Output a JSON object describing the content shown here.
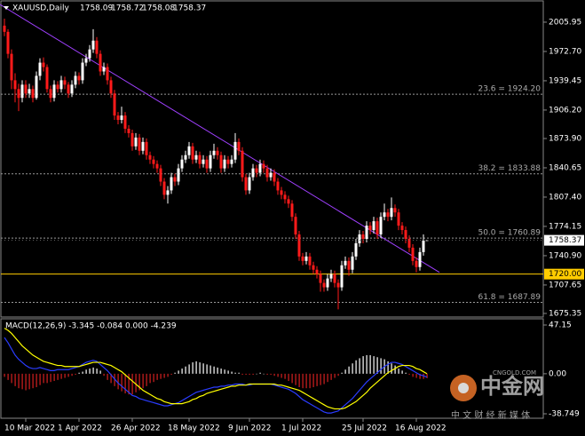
{
  "chart_data": [
    {
      "type": "candlestick",
      "symbol": "XAUUSD,Daily",
      "up_color": "#ffffff",
      "down_color": "#ff1a1a",
      "categories": [
        null,
        null,
        null,
        null,
        null,
        null,
        "10 Mar 2022",
        null,
        null,
        null,
        null,
        null,
        null,
        null,
        null,
        null,
        null,
        null,
        null,
        null,
        null,
        "1 Apr 2022",
        null,
        null,
        null,
        null,
        null,
        null,
        null,
        null,
        null,
        null,
        null,
        null,
        null,
        null,
        "26 Apr 2022",
        null,
        null,
        null,
        null,
        null,
        null,
        null,
        null,
        null,
        null,
        null,
        null,
        null,
        null,
        null,
        "18 May 2022",
        null,
        null,
        null,
        null,
        null,
        null,
        null,
        null,
        null,
        null,
        null,
        null,
        null,
        null,
        null,
        null,
        "9 Jun 2022",
        null,
        null,
        null,
        null,
        null,
        null,
        null,
        null,
        null,
        null,
        null,
        null,
        null,
        null,
        "1 Jul 2022",
        null,
        null,
        null,
        null,
        null,
        null,
        null,
        null,
        null,
        null,
        null,
        null,
        null,
        null,
        null,
        null,
        "25 Jul 2022",
        null,
        null,
        null,
        null,
        null,
        null,
        null,
        null,
        null,
        null,
        null,
        null,
        null,
        null,
        "16 Aug 2022",
        null,
        null,
        null
      ],
      "ohlc": [
        [
          2002,
          2010,
          1990,
          1995
        ],
        [
          1995,
          1998,
          1965,
          1970
        ],
        [
          1970,
          1975,
          1930,
          1940
        ],
        [
          1940,
          1948,
          1915,
          1930
        ],
        [
          1930,
          1936,
          1905,
          1920
        ],
        [
          1920,
          1940,
          1915,
          1935
        ],
        [
          1935,
          1940,
          1920,
          1925
        ],
        [
          1925,
          1936,
          1920,
          1930
        ],
        [
          1930,
          1934,
          1915,
          1920
        ],
        [
          1920,
          1950,
          1918,
          1945
        ],
        [
          1945,
          1965,
          1940,
          1960
        ],
        [
          1960,
          1966,
          1950,
          1955
        ],
        [
          1955,
          1958,
          1926,
          1930
        ],
        [
          1930,
          1934,
          1915,
          1920
        ],
        [
          1920,
          1940,
          1916,
          1935
        ],
        [
          1935,
          1939,
          1926,
          1930
        ],
        [
          1930,
          1945,
          1926,
          1940
        ],
        [
          1940,
          1944,
          1930,
          1935
        ],
        [
          1935,
          1938,
          1920,
          1925
        ],
        [
          1925,
          1940,
          1921,
          1935
        ],
        [
          1935,
          1950,
          1931,
          1945
        ],
        [
          1945,
          1949,
          1935,
          1940
        ],
        [
          1940,
          1965,
          1936,
          1960
        ],
        [
          1960,
          1970,
          1956,
          1965
        ],
        [
          1965,
          1980,
          1961,
          1975
        ],
        [
          1975,
          1998,
          1971,
          1985
        ],
        [
          1985,
          1989,
          1965,
          1970
        ],
        [
          1970,
          1974,
          1945,
          1950
        ],
        [
          1950,
          1960,
          1946,
          1955
        ],
        [
          1955,
          1959,
          1935,
          1940
        ],
        [
          1940,
          1944,
          1920,
          1925
        ],
        [
          1925,
          1929,
          1895,
          1900
        ],
        [
          1900,
          1904,
          1890,
          1895
        ],
        [
          1895,
          1910,
          1891,
          1900
        ],
        [
          1900,
          1904,
          1880,
          1885
        ],
        [
          1885,
          1889,
          1875,
          1880
        ],
        [
          1880,
          1884,
          1860,
          1865
        ],
        [
          1865,
          1880,
          1861,
          1875
        ],
        [
          1875,
          1879,
          1855,
          1860
        ],
        [
          1860,
          1875,
          1856,
          1870
        ],
        [
          1870,
          1874,
          1850,
          1855
        ],
        [
          1855,
          1859,
          1845,
          1850
        ],
        [
          1850,
          1854,
          1840,
          1845
        ],
        [
          1845,
          1849,
          1835,
          1840
        ],
        [
          1840,
          1844,
          1820,
          1825
        ],
        [
          1825,
          1829,
          1805,
          1810
        ],
        [
          1810,
          1820,
          1800,
          1815
        ],
        [
          1815,
          1835,
          1811,
          1830
        ],
        [
          1830,
          1834,
          1820,
          1825
        ],
        [
          1825,
          1845,
          1821,
          1840
        ],
        [
          1840,
          1855,
          1836,
          1850
        ],
        [
          1850,
          1860,
          1846,
          1855
        ],
        [
          1855,
          1870,
          1851,
          1865
        ],
        [
          1865,
          1869,
          1845,
          1850
        ],
        [
          1850,
          1860,
          1846,
          1855
        ],
        [
          1855,
          1859,
          1840,
          1845
        ],
        [
          1845,
          1855,
          1841,
          1850
        ],
        [
          1850,
          1854,
          1835,
          1840
        ],
        [
          1840,
          1860,
          1836,
          1855
        ],
        [
          1855,
          1868,
          1851,
          1860
        ],
        [
          1860,
          1864,
          1850,
          1855
        ],
        [
          1855,
          1859,
          1835,
          1840
        ],
        [
          1840,
          1855,
          1836,
          1850
        ],
        [
          1850,
          1854,
          1840,
          1845
        ],
        [
          1845,
          1855,
          1841,
          1850
        ],
        [
          1850,
          1880,
          1846,
          1870
        ],
        [
          1870,
          1874,
          1855,
          1860
        ],
        [
          1860,
          1864,
          1825,
          1830
        ],
        [
          1830,
          1834,
          1810,
          1815
        ],
        [
          1815,
          1835,
          1811,
          1830
        ],
        [
          1830,
          1845,
          1826,
          1840
        ],
        [
          1840,
          1844,
          1830,
          1835
        ],
        [
          1835,
          1850,
          1831,
          1845
        ],
        [
          1845,
          1849,
          1835,
          1840
        ],
        [
          1840,
          1844,
          1825,
          1830
        ],
        [
          1830,
          1840,
          1826,
          1835
        ],
        [
          1835,
          1839,
          1820,
          1825
        ],
        [
          1825,
          1829,
          1810,
          1815
        ],
        [
          1815,
          1819,
          1805,
          1810
        ],
        [
          1810,
          1814,
          1800,
          1805
        ],
        [
          1805,
          1809,
          1795,
          1800
        ],
        [
          1800,
          1804,
          1780,
          1785
        ],
        [
          1785,
          1789,
          1760,
          1765
        ],
        [
          1765,
          1769,
          1735,
          1740
        ],
        [
          1740,
          1744,
          1730,
          1735
        ],
        [
          1735,
          1745,
          1731,
          1740
        ],
        [
          1740,
          1744,
          1725,
          1730
        ],
        [
          1730,
          1734,
          1720,
          1725
        ],
        [
          1725,
          1729,
          1715,
          1720
        ],
        [
          1720,
          1724,
          1700,
          1710
        ],
        [
          1710,
          1714,
          1700,
          1705
        ],
        [
          1705,
          1720,
          1701,
          1715
        ],
        [
          1715,
          1725,
          1711,
          1720
        ],
        [
          1720,
          1724,
          1705,
          1710
        ],
        [
          1710,
          1714,
          1680,
          1705
        ],
        [
          1705,
          1735,
          1701,
          1730
        ],
        [
          1730,
          1740,
          1726,
          1735
        ],
        [
          1735,
          1739,
          1718,
          1725
        ],
        [
          1725,
          1745,
          1721,
          1740
        ],
        [
          1740,
          1760,
          1736,
          1755
        ],
        [
          1755,
          1770,
          1751,
          1765
        ],
        [
          1765,
          1769,
          1755,
          1760
        ],
        [
          1760,
          1780,
          1756,
          1775
        ],
        [
          1775,
          1779,
          1765,
          1770
        ],
        [
          1770,
          1785,
          1766,
          1780
        ],
        [
          1780,
          1784,
          1760,
          1765
        ],
        [
          1765,
          1790,
          1761,
          1785
        ],
        [
          1785,
          1800,
          1781,
          1790
        ],
        [
          1790,
          1794,
          1780,
          1785
        ],
        [
          1785,
          1807,
          1781,
          1795
        ],
        [
          1795,
          1799,
          1785,
          1790
        ],
        [
          1790,
          1794,
          1770,
          1775
        ],
        [
          1775,
          1779,
          1765,
          1770
        ],
        [
          1770,
          1774,
          1755,
          1760
        ],
        [
          1760,
          1764,
          1745,
          1750
        ],
        [
          1750,
          1754,
          1730,
          1735
        ],
        [
          1735,
          1739,
          1722,
          1728
        ],
        [
          1728,
          1750,
          1724,
          1745
        ],
        [
          1745,
          1765,
          1741,
          1758
        ],
        [
          1758.09,
          1758.72,
          1758.08,
          1758.37
        ]
      ],
      "ylim": [
        1671.3,
        2030.1
      ],
      "yticks": [
        2005.95,
        {
          "value": 1972.7,
          "label": "1972.70"
        },
        1939.45,
        {
          "value": 1906.2,
          "label": "1906.20"
        },
        {
          "value": 1873.9,
          "label": "1873.90"
        },
        1840.65,
        {
          "value": 1807.4,
          "label": "1807.40"
        },
        1774.15,
        {
          "value": 1740.9,
          "label": "1740.90"
        },
        1707.65,
        1675.35
      ],
      "fib_levels": [
        {
          "value": 1924.2,
          "label": "23.6 = 1924.20"
        },
        {
          "value": 1833.88,
          "label": "38.2 = 1833.88"
        },
        {
          "value": 1760.89,
          "label": "50.0 = 1760.89"
        },
        {
          "value": 1687.89,
          "label": "61.8 = 1687.89"
        }
      ],
      "hline": {
        "value": 1720,
        "label": "1720.00",
        "color": "#ffcc00"
      },
      "trendline": {
        "from": [
          -1.25,
          2026
        ],
        "to": [
          122.5,
          1722
        ],
        "color": "#a040ff"
      }
    },
    {
      "type": "macd",
      "title": "MACD(12,26,9) -3.345 -0.084 0.000 -4.239",
      "up_color": "#ffffff",
      "down_color": "#d42020",
      "histogram": [
        -3,
        -6,
        -9,
        -12,
        -14,
        -15,
        -16,
        -15,
        -14,
        -13,
        -11,
        -9,
        -9,
        -8,
        -7,
        -6,
        -5,
        -4,
        -3,
        -2,
        -1,
        1,
        2,
        4,
        5,
        6,
        5,
        3,
        -2,
        -6,
        -9,
        -12,
        -15,
        -17,
        -19,
        -20,
        -20,
        -18,
        -16,
        -14,
        -12,
        -9,
        -8,
        -6,
        -5,
        -4,
        -3,
        -1,
        1,
        3,
        5,
        7,
        9,
        11,
        12,
        11,
        10,
        9,
        8,
        7,
        6,
        5,
        4,
        3,
        2,
        1,
        1,
        -1,
        -1,
        -1,
        -1,
        0,
        1,
        0,
        -1,
        -1,
        -2,
        -3,
        -4,
        -5,
        -7,
        -9,
        -11,
        -13,
        -14,
        -14,
        -14,
        -13,
        -12,
        -11,
        -10,
        -8,
        -6,
        -4,
        -2,
        1,
        4,
        7,
        10,
        13,
        15,
        17,
        18,
        18,
        17,
        16,
        15,
        14,
        12,
        10,
        8,
        5,
        3,
        1,
        -1,
        -3,
        -4,
        -5,
        -5,
        -4.239
      ],
      "series": [
        {
          "color": "#2a3cff",
          "values": [
            35,
            30,
            24,
            18,
            14,
            11,
            8,
            6,
            5,
            5,
            6,
            5,
            4,
            3,
            3,
            4,
            4,
            4,
            4,
            5,
            6,
            7,
            9,
            11,
            12,
            13,
            12,
            9,
            6,
            3,
            -1,
            -5,
            -9,
            -12,
            -15,
            -18,
            -21,
            -22,
            -24,
            -25,
            -26,
            -27,
            -28,
            -29,
            -30,
            -31,
            -31,
            -30,
            -29,
            -28,
            -26,
            -24,
            -22,
            -20,
            -18,
            -17,
            -16,
            -15,
            -14,
            -13,
            -13,
            -12,
            -12,
            -11,
            -11,
            -10,
            -10,
            -10,
            -11,
            -11,
            -10,
            -10,
            -10,
            -10,
            -10,
            -10,
            -11,
            -12,
            -13,
            -14,
            -15,
            -17,
            -19,
            -22,
            -25,
            -27,
            -29,
            -31,
            -33,
            -35,
            -37,
            -38,
            -38,
            -37,
            -36,
            -33,
            -30,
            -27,
            -24,
            -20,
            -16,
            -12,
            -8,
            -5,
            -2,
            1,
            4,
            7,
            9,
            11,
            11,
            10,
            9,
            7,
            5,
            3,
            1,
            -1,
            -2,
            -3.345
          ]
        },
        {
          "color": "#ffff00",
          "values": [
            44,
            42,
            39,
            35,
            31,
            27,
            24,
            21,
            18,
            16,
            14,
            12,
            11,
            10,
            9,
            8,
            8,
            7,
            7,
            7,
            7,
            7,
            8,
            9,
            10,
            11,
            11,
            11,
            10,
            9,
            8,
            6,
            4,
            2,
            -1,
            -4,
            -7,
            -10,
            -13,
            -16,
            -18,
            -20,
            -22,
            -24,
            -25,
            -27,
            -28,
            -29,
            -29,
            -29,
            -29,
            -28,
            -27,
            -25,
            -24,
            -22,
            -21,
            -19,
            -18,
            -17,
            -16,
            -15,
            -14,
            -13,
            -12,
            -12,
            -11,
            -11,
            -11,
            -10,
            -10,
            -10,
            -10,
            -10,
            -10,
            -10,
            -10,
            -11,
            -11,
            -12,
            -13,
            -14,
            -15,
            -16,
            -18,
            -20,
            -22,
            -24,
            -26,
            -28,
            -30,
            -32,
            -33,
            -34,
            -34,
            -34,
            -33,
            -31,
            -29,
            -27,
            -24,
            -21,
            -18,
            -14,
            -11,
            -8,
            -5,
            -2,
            1,
            3,
            5,
            7,
            8,
            8,
            8,
            7,
            5,
            4,
            2,
            0
          ]
        }
      ],
      "ylim": [
        -42.2,
        52.3
      ],
      "yticks": [
        47.15,
        {
          "value": 0,
          "label": "0.00"
        },
        -38.749
      ]
    }
  ],
  "watermark": {
    "brand": "中金网",
    "site": "CNGOLD.COM",
    "slogan": "中 文 财 经 新 媒 体"
  }
}
